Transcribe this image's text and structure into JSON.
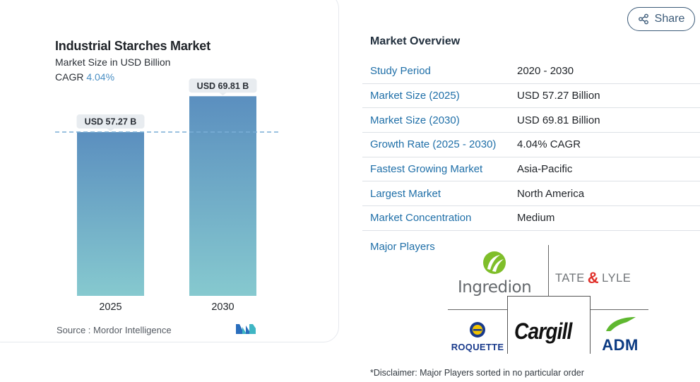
{
  "chart_data": {
    "type": "bar",
    "title": "Industrial Starches Market",
    "subtitle": "Market Size in USD Billion",
    "cagr_label": "CAGR",
    "cagr_value": "4.04%",
    "categories": [
      "2025",
      "2030"
    ],
    "values": [
      57.27,
      69.81
    ],
    "data_labels": [
      "USD 57.27 B",
      "USD 69.81 B"
    ],
    "ylim": [
      0,
      80
    ],
    "xlabel": "",
    "ylabel": "",
    "grid": false,
    "reference_line": "dashed line at 2025 value",
    "colors": {
      "bar_top": "#5b8fbf",
      "bar_bottom": "#86c9cf",
      "label_bg": "#e8ecf0",
      "dash": "#7aaed6"
    }
  },
  "source": {
    "label": "Source :",
    "text": "Mordor Intelligence"
  },
  "share": {
    "label": "Share",
    "icon": "share-icon"
  },
  "overview": {
    "title": "Market Overview",
    "rows": [
      {
        "label": "Study Period",
        "value": "2020 - 2030"
      },
      {
        "label": "Market Size (2025)",
        "value": "USD 57.27 Billion"
      },
      {
        "label": "Market Size (2030)",
        "value": "USD 69.81 Billion"
      },
      {
        "label": "Growth Rate (2025 - 2030)",
        "value": "4.04% CAGR"
      },
      {
        "label": "Fastest Growing Market",
        "value": "Asia-Pacific"
      },
      {
        "label": "Largest Market",
        "value": "North America"
      },
      {
        "label": "Market Concentration",
        "value": "Medium"
      }
    ]
  },
  "players": {
    "label": "Major Players",
    "logos": [
      "Ingredion",
      "TATE",
      "&",
      "LYLE",
      "ROQUETTE",
      "Cargill",
      "ADM"
    ]
  },
  "disclaimer": "*Disclaimer: Major Players sorted in no particular order"
}
